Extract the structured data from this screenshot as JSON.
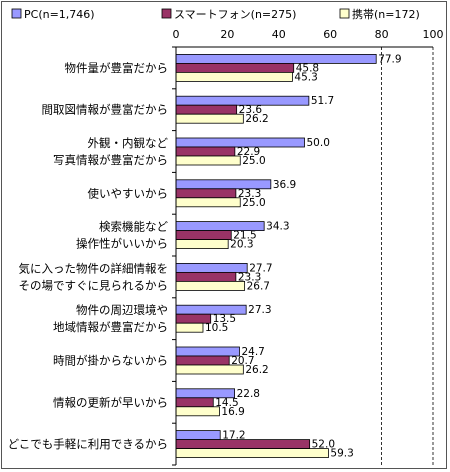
{
  "chart_data": {
    "type": "bar",
    "orientation": "horizontal",
    "title": "",
    "xlabel": "",
    "ylabel": "",
    "xlim": [
      0,
      100
    ],
    "ticks": [
      0,
      20,
      40,
      60,
      80,
      100
    ],
    "tick_labels": [
      "0",
      "20",
      "40",
      "60",
      "80",
      "100"
    ],
    "grid": "dashed vertical lines at 80 and 100",
    "legend_position": "top",
    "categories": [
      [
        "物件量が豊富だから"
      ],
      [
        "間取図情報が豊富だから"
      ],
      [
        "外観・内観など",
        "写真情報が豊富だから"
      ],
      [
        "使いやすいから"
      ],
      [
        "検索機能など",
        "操作性がいいから"
      ],
      [
        "気に入った物件の詳細情報を",
        "その場ですぐに見られるから"
      ],
      [
        "物件の周辺環境や",
        "地域情報が豊富だから"
      ],
      [
        "時間が掛からないから"
      ],
      [
        "情報の更新が早いから"
      ],
      [
        "どこでも手軽に利用できるから"
      ]
    ],
    "series": [
      {
        "name": "PC(n=1,746)",
        "color": "#9999ff",
        "values": [
          77.9,
          51.7,
          50.0,
          36.9,
          34.3,
          27.7,
          27.3,
          24.7,
          22.8,
          17.2
        ],
        "labels": [
          "77.9",
          "51.7",
          "50.0",
          "36.9",
          "34.3",
          "27.7",
          "27.3",
          "24.7",
          "22.8",
          "17.2"
        ]
      },
      {
        "name": "スマートフォン(n=275)",
        "color": "#993366",
        "values": [
          45.8,
          23.6,
          22.9,
          23.3,
          21.5,
          23.3,
          13.5,
          20.7,
          14.5,
          52.0
        ],
        "labels": [
          "45.8",
          "23.6",
          "22.9",
          "23.3",
          "21.5",
          "23.3",
          "13.5",
          "20.7",
          "14.5",
          "52.0"
        ]
      },
      {
        "name": "携帯(n=172)",
        "color": "#ffffcc",
        "values": [
          45.3,
          26.2,
          25.0,
          25.0,
          20.3,
          26.7,
          10.5,
          26.2,
          16.9,
          59.3
        ],
        "labels": [
          "45.3",
          "26.2",
          "25.0",
          "25.0",
          "20.3",
          "26.7",
          "10.5",
          "26.2",
          "16.9",
          "59.3"
        ]
      }
    ]
  }
}
